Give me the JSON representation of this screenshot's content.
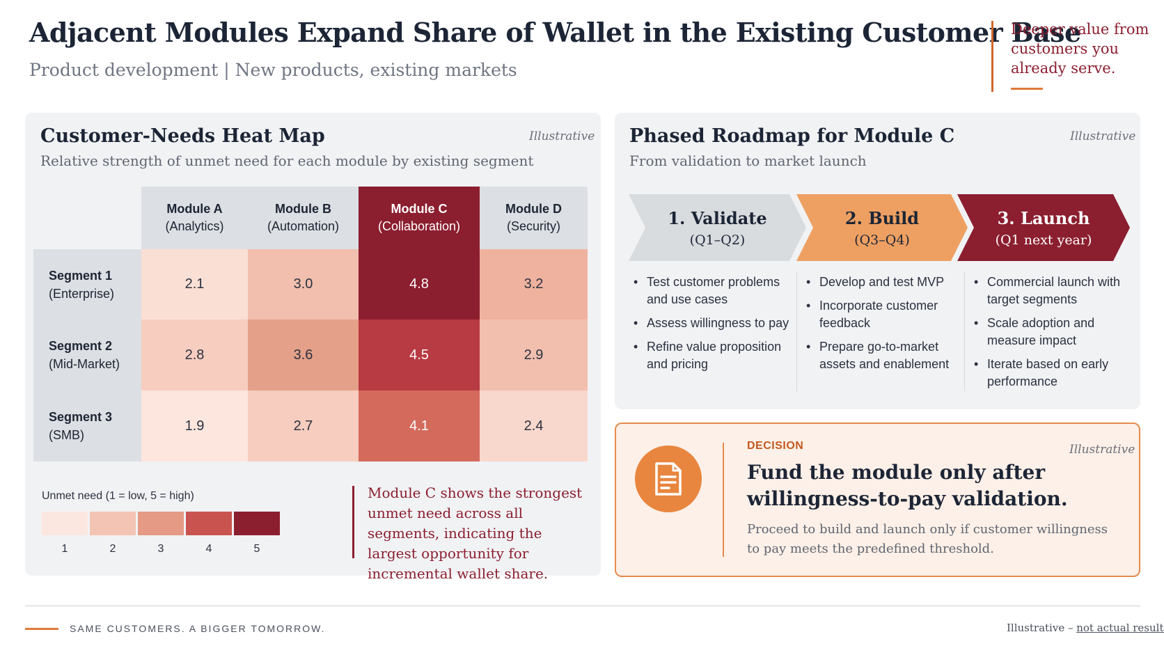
{
  "header": {
    "title": "Adjacent Modules Expand Share of Wallet in the Existing Customer Base",
    "subtitle": "Product development | New products, existing markets",
    "tagline": "Deeper value from customers you already serve."
  },
  "heatmap": {
    "title": "Customer-Needs Heat Map",
    "subtitle": "Relative strength of unmet need for each module by existing segment",
    "illustrative": "Illustrative",
    "columns": [
      {
        "name": "Module A",
        "desc": "(Analytics)"
      },
      {
        "name": "Module B",
        "desc": "(Automation)"
      },
      {
        "name": "Module C",
        "desc": "(Collaboration)"
      },
      {
        "name": "Module D",
        "desc": "(Security)"
      }
    ],
    "rows": [
      {
        "name": "Segment 1",
        "desc": "(Enterprise)",
        "values": [
          "2.1",
          "3.0",
          "4.8",
          "3.2"
        ]
      },
      {
        "name": "Segment 2",
        "desc": "(Mid-Market)",
        "values": [
          "2.8",
          "3.6",
          "4.5",
          "2.9"
        ]
      },
      {
        "name": "Segment 3",
        "desc": "(SMB)",
        "values": [
          "1.9",
          "2.7",
          "4.1",
          "2.4"
        ]
      }
    ],
    "legend": {
      "label": "Unmet need (1 = low, 5 = high)",
      "steps": [
        "1",
        "2",
        "3",
        "4",
        "5"
      ]
    },
    "callout": "Module C shows the strongest unmet need across all segments, indicating the largest opportunity for incremental wallet share."
  },
  "roadmap": {
    "title": "Phased Roadmap for Module C",
    "subtitle": "From validation to market launch",
    "illustrative": "Illustrative",
    "phases": [
      {
        "title": "1. Validate",
        "period": "(Q1–Q2)",
        "bullets": [
          "Test customer problems and use cases",
          "Assess willingness to pay",
          "Refine value proposition and pricing"
        ]
      },
      {
        "title": "2. Build",
        "period": "(Q3–Q4)",
        "bullets": [
          "Develop and test MVP",
          "Incorporate customer feedback",
          "Prepare go-to-market assets and enablement"
        ]
      },
      {
        "title": "3. Launch",
        "period": "(Q1 next year)",
        "bullets": [
          "Commercial launch with target segments",
          "Scale adoption and measure impact",
          "Iterate based on early performance"
        ]
      }
    ]
  },
  "decision": {
    "kicker": "DECISION",
    "illustrative": "Illustrative",
    "icon": "document-icon",
    "title": "Fund the module only after willingness-to-pay validation.",
    "body": "Proceed to build and launch only if customer willingness to pay meets the predefined threshold."
  },
  "footer": {
    "left": "SAME CUSTOMERS. A BIGGER TOMORROW.",
    "right_prefix": "Illustrative – ",
    "right_link": "not actual results"
  },
  "colors": {
    "brand_dark": "#8b1e2f",
    "accent_orange": "#e8863f",
    "scale": [
      "#fbe7e0",
      "#f3c4b4",
      "#e49a84",
      "#c9544f",
      "#8b1e2f"
    ]
  }
}
